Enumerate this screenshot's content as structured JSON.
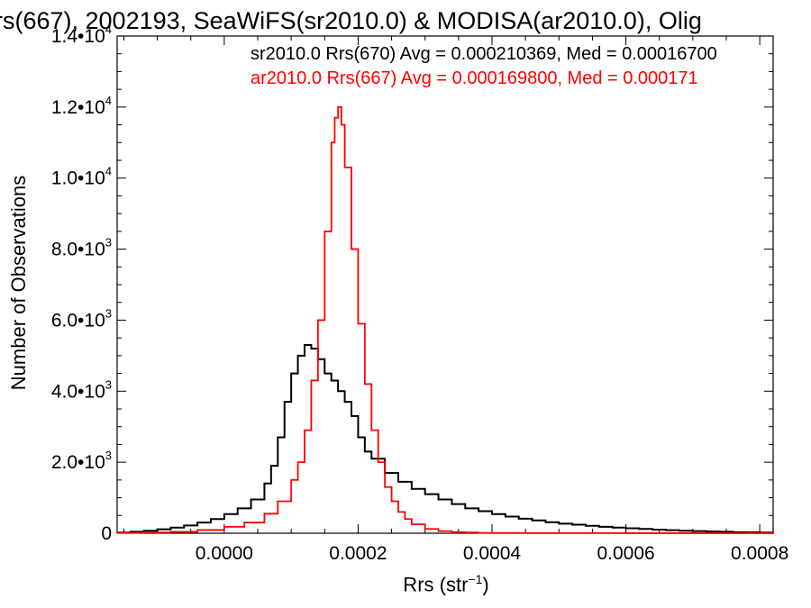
{
  "chart_data": {
    "type": "line",
    "title": "rs(667), 2002193, SeaWiFS(sr2010.0) & MODISA(ar2010.0), Olig",
    "xlabel_base": "Rrs (str",
    "xlabel_sup": "−1",
    "xlabel_close": ")",
    "ylabel": "Number of Observations",
    "xlim": [
      -0.00016,
      0.00082
    ],
    "ylim": [
      0,
      14000
    ],
    "x_ticks": [
      0.0,
      0.0002,
      0.0004,
      0.0006,
      0.0008
    ],
    "x_tick_labels": [
      "0.0000",
      "0.0002",
      "0.0004",
      "0.0006",
      "0.0008"
    ],
    "y_ticks": [
      0,
      2000,
      4000,
      6000,
      8000,
      10000,
      12000,
      14000
    ],
    "y_tick_labels": [
      {
        "mantissa": "0",
        "exp": ""
      },
      {
        "mantissa": "2.0•10",
        "exp": "3"
      },
      {
        "mantissa": "4.0•10",
        "exp": "3"
      },
      {
        "mantissa": "6.0•10",
        "exp": "3"
      },
      {
        "mantissa": "8.0•10",
        "exp": "3"
      },
      {
        "mantissa": "1.0•10",
        "exp": "4"
      },
      {
        "mantissa": "1.2•10",
        "exp": "4"
      },
      {
        "mantissa": "1.4•10",
        "exp": "4"
      }
    ],
    "legend": [
      {
        "text": "sr2010.0 Rrs(670) Avg = 0.000210369, Med = 0.00016700",
        "color": "#000000"
      },
      {
        "text": "ar2010.0 Rrs(667) Avg = 0.000169800, Med = 0.000171",
        "color": "#ff0000"
      }
    ],
    "grid": false,
    "series": [
      {
        "name": "sr2010.0 Rrs(670)",
        "color": "#000000",
        "x": [
          -0.00016,
          -0.00014,
          -0.00012,
          -0.0001,
          -8e-05,
          -6e-05,
          -4e-05,
          -2e-05,
          0.0,
          2e-05,
          4e-05,
          6e-05,
          7e-05,
          8e-05,
          9e-05,
          0.0001,
          0.00011,
          0.00012,
          0.00013,
          0.00014,
          0.00015,
          0.00016,
          0.00017,
          0.00018,
          0.00019,
          0.0002,
          0.00021,
          0.00022,
          0.00024,
          0.00026,
          0.00028,
          0.0003,
          0.00032,
          0.00034,
          0.00036,
          0.00038,
          0.0004,
          0.00042,
          0.00044,
          0.00046,
          0.00048,
          0.0005,
          0.00052,
          0.00054,
          0.00056,
          0.00058,
          0.0006,
          0.00062,
          0.00064,
          0.00066,
          0.00068,
          0.0007,
          0.00072,
          0.00074,
          0.00076,
          0.00078,
          0.0008,
          0.00082
        ],
        "y": [
          20,
          40,
          70,
          110,
          160,
          220,
          300,
          400,
          540,
          700,
          950,
          1400,
          1900,
          2700,
          3700,
          4500,
          5000,
          5300,
          5200,
          4900,
          4500,
          4300,
          4000,
          3700,
          3300,
          2700,
          2300,
          2100,
          1700,
          1450,
          1250,
          1100,
          950,
          820,
          700,
          620,
          540,
          470,
          410,
          360,
          310,
          270,
          240,
          210,
          180,
          160,
          140,
          120,
          100,
          85,
          70,
          60,
          50,
          40,
          30,
          25,
          20,
          15
        ]
      },
      {
        "name": "ar2010.0 Rrs(667)",
        "color": "#ff0000",
        "x": [
          -0.00016,
          -0.00012,
          -8e-05,
          -4e-05,
          0.0,
          3e-05,
          6e-05,
          8e-05,
          0.0001,
          0.00011,
          0.00012,
          0.00013,
          0.00014,
          0.00015,
          0.00016,
          0.000165,
          0.00017,
          0.000175,
          0.00018,
          0.00019,
          0.0002,
          0.00021,
          0.00022,
          0.00023,
          0.00024,
          0.00025,
          0.00026,
          0.00027,
          0.00028,
          0.0003,
          0.00032,
          0.00034,
          0.00036,
          0.00038,
          0.0004,
          0.00044,
          0.0005,
          0.0006,
          0.0007,
          0.00082
        ],
        "y": [
          10,
          20,
          40,
          90,
          180,
          300,
          550,
          900,
          1500,
          2000,
          2900,
          4300,
          6000,
          8500,
          11000,
          11700,
          12000,
          11500,
          10300,
          8000,
          5900,
          4200,
          2900,
          2000,
          1300,
          900,
          600,
          400,
          250,
          120,
          60,
          30,
          20,
          10,
          8,
          5,
          3,
          2,
          1,
          0
        ]
      }
    ]
  }
}
